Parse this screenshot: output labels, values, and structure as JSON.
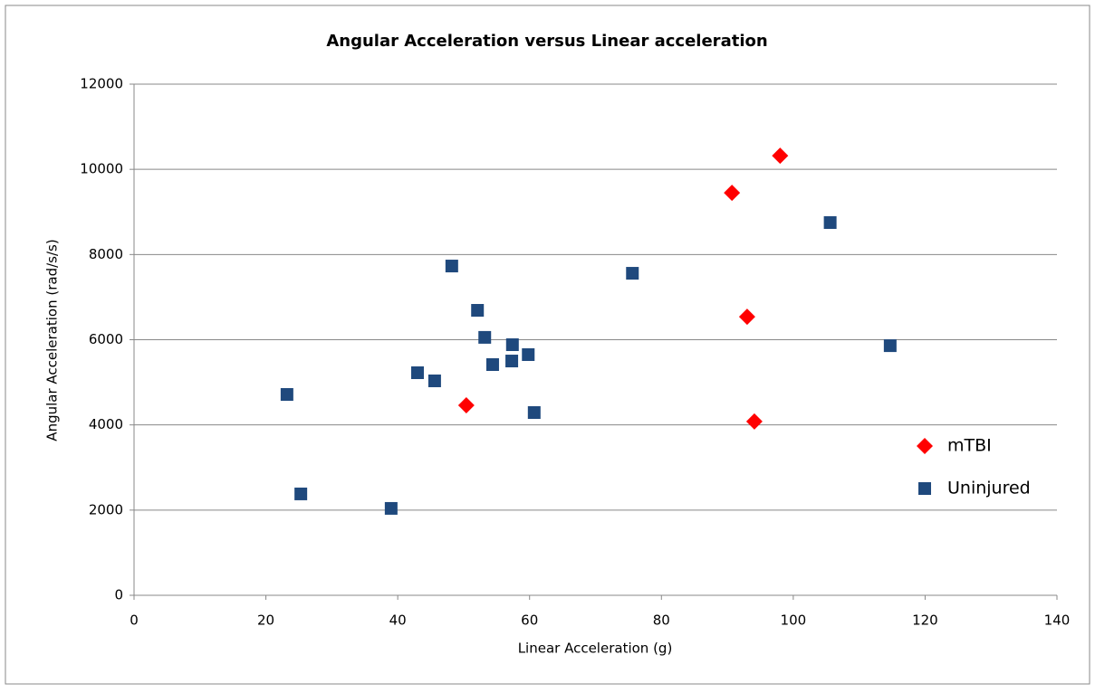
{
  "chart_data": {
    "type": "scatter",
    "title": "Angular Acceleration versus Linear acceleration",
    "x_label": "Linear Acceleration (g)",
    "y_label": "Angular Acceleration (rad/s/s)",
    "xlim": [
      0,
      140
    ],
    "xticks": [
      0,
      20,
      40,
      60,
      80,
      100,
      120,
      140
    ],
    "ylim": [
      0,
      12000
    ],
    "yticks": [
      0,
      2000,
      4000,
      6000,
      8000,
      10000,
      12000
    ],
    "grid": true,
    "legend": "right",
    "series": [
      {
        "name": "mTBI",
        "color": "#ff0000",
        "marker": "diamond",
        "x": [
          90.7,
          98.0,
          93.0,
          94.1,
          50.4
        ],
        "values": [
          9450,
          10320,
          6540,
          4080,
          4460
        ]
      },
      {
        "name": "Uninjured",
        "color": "#1f497d",
        "marker": "square",
        "x": [
          23.2,
          25.3,
          39.0,
          43.0,
          45.6,
          48.2,
          52.1,
          53.2,
          54.4,
          57.3,
          57.4,
          59.8,
          60.7,
          75.6,
          105.6,
          114.7
        ],
        "values": [
          4715,
          2380,
          2040,
          5225,
          5034,
          7730,
          6690,
          6055,
          5416,
          5500,
          5883,
          5650,
          4290,
          7560,
          8750,
          5860
        ]
      }
    ]
  }
}
